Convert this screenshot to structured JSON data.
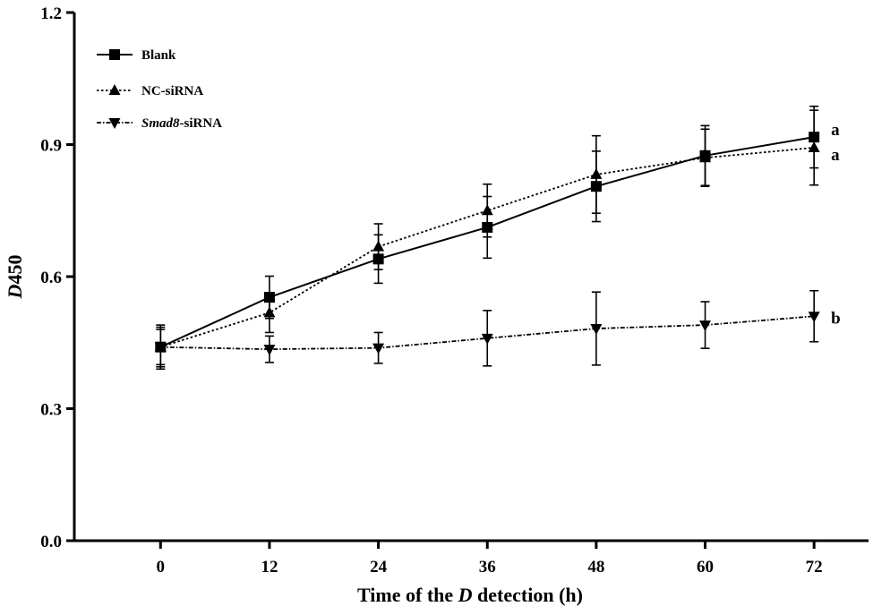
{
  "chart_data": {
    "type": "line",
    "title": "",
    "xlabel": {
      "pre": "Time of the ",
      "italic": "D",
      "post": " detection (h)"
    },
    "ylabel": {
      "italic": "D",
      "rest": "450"
    },
    "x": [
      0,
      12,
      24,
      36,
      48,
      60,
      72
    ],
    "x_ticks": [
      "0",
      "12",
      "24",
      "36",
      "48",
      "60",
      "72"
    ],
    "y_ticks": [
      "0.0",
      "0.3",
      "0.6",
      "0.9",
      "1.2"
    ],
    "xlim": [
      -9.5,
      78
    ],
    "ylim": [
      0,
      1.2
    ],
    "legend_position": "top-left",
    "series": [
      {
        "name": "Blank",
        "legend_italic": "",
        "legend_text": "Blank",
        "marker": "square",
        "line": "solid",
        "values": [
          0.44,
          0.553,
          0.64,
          0.712,
          0.805,
          0.875,
          0.917
        ],
        "errors": [
          0.04,
          0.048,
          0.055,
          0.07,
          0.08,
          0.068,
          0.07
        ],
        "annotation": "a"
      },
      {
        "name": "NC-siRNA",
        "legend_italic": "",
        "legend_text": "NC-siRNA",
        "marker": "triangle-up",
        "line": "dotted",
        "values": [
          0.44,
          0.518,
          0.668,
          0.75,
          0.832,
          0.87,
          0.893
        ],
        "errors": [
          0.045,
          0.045,
          0.052,
          0.06,
          0.088,
          0.065,
          0.085
        ],
        "annotation": "a"
      },
      {
        "name": "Smad8-siRNA",
        "legend_italic": "Smad8",
        "legend_text": "-siRNA",
        "marker": "triangle-down",
        "line": "dash-dot",
        "values": [
          0.44,
          0.435,
          0.438,
          0.46,
          0.482,
          0.49,
          0.51
        ],
        "errors": [
          0.05,
          0.03,
          0.035,
          0.063,
          0.083,
          0.053,
          0.058
        ],
        "annotation": "b"
      }
    ]
  }
}
